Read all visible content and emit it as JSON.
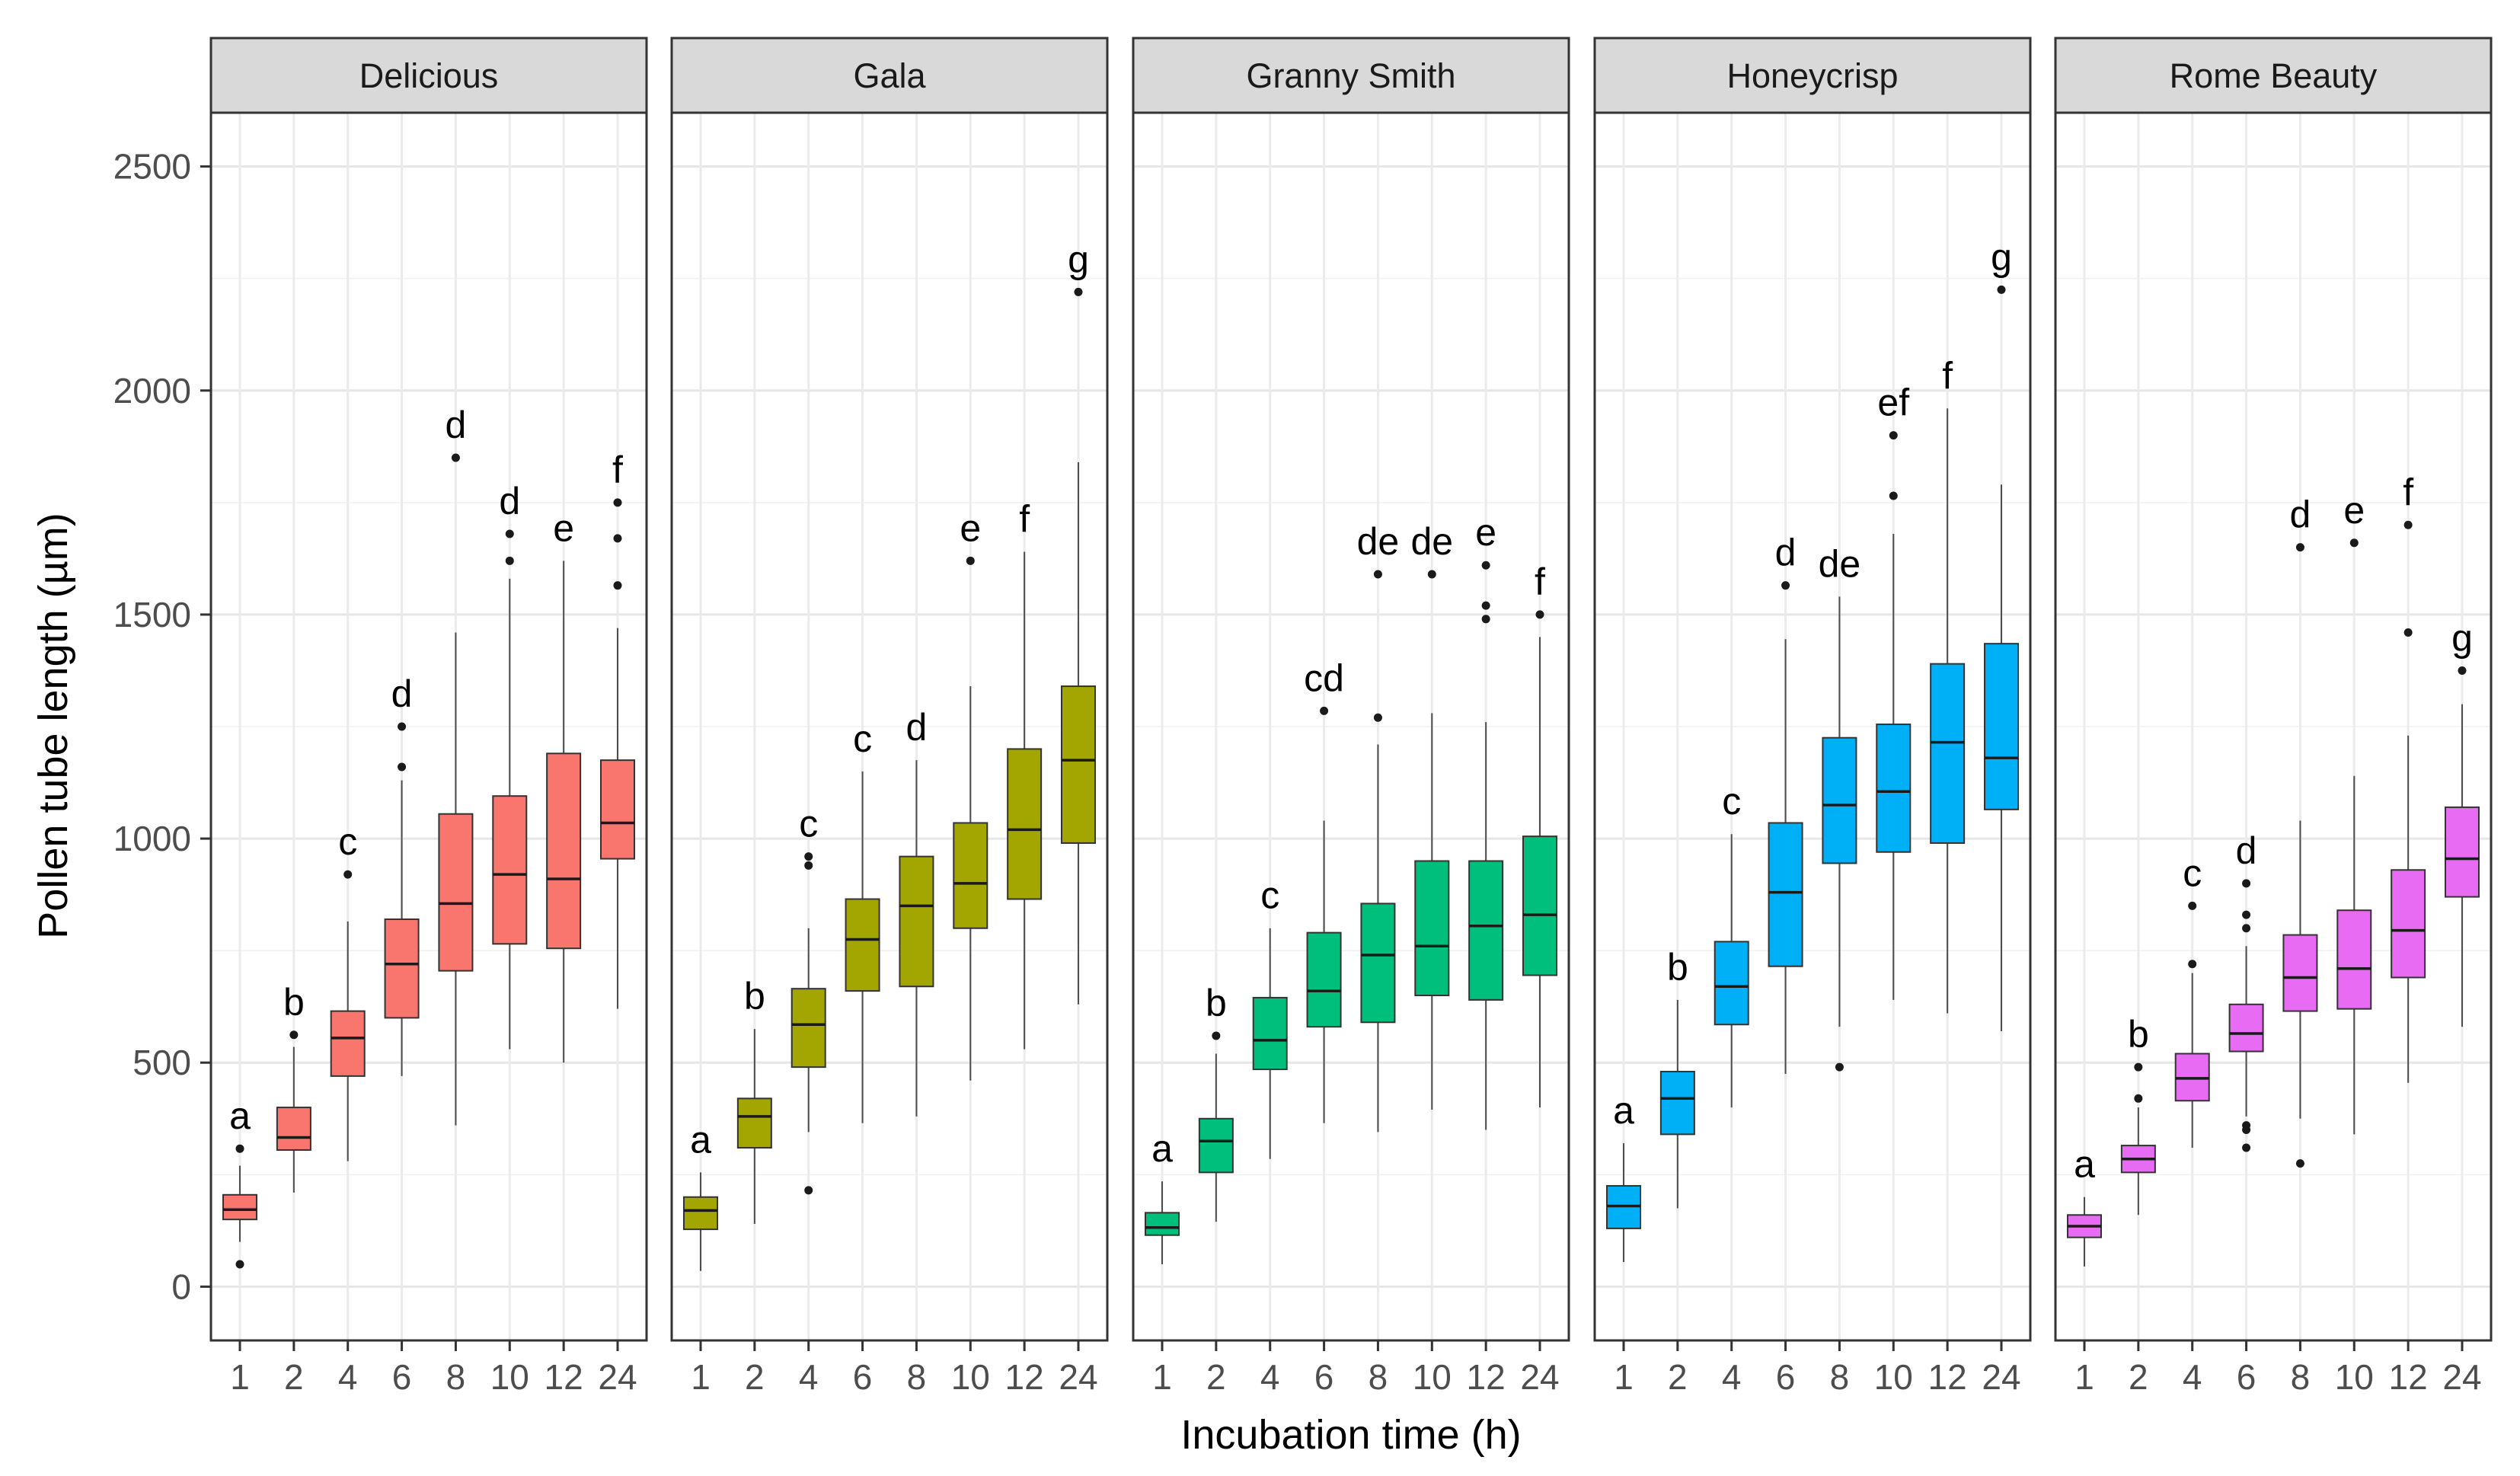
{
  "chart_data": {
    "type": "boxplot",
    "xlabel": "Incubation time (h)",
    "ylabel": "Pollen tube length (µm)",
    "ylim": [
      -120,
      2620
    ],
    "yticks": [
      0,
      500,
      1000,
      1500,
      2000,
      2500
    ],
    "categories": [
      "1",
      "2",
      "4",
      "6",
      "8",
      "10",
      "12",
      "24"
    ],
    "panels": [
      {
        "name": "Delicious",
        "color": "#F8766D",
        "boxes": [
          {
            "x": "1",
            "q1": 150,
            "median": 172,
            "q3": 205,
            "lower": 100,
            "upper": 270,
            "outliers": [
              308,
              50
            ],
            "letter": "a"
          },
          {
            "x": "2",
            "q1": 305,
            "median": 333,
            "q3": 400,
            "lower": 210,
            "upper": 535,
            "outliers": [
              562
            ],
            "letter": "b"
          },
          {
            "x": "4",
            "q1": 470,
            "median": 555,
            "q3": 615,
            "lower": 280,
            "upper": 815,
            "outliers": [
              920
            ],
            "letter": "c"
          },
          {
            "x": "6",
            "q1": 600,
            "median": 720,
            "q3": 820,
            "lower": 470,
            "upper": 1130,
            "outliers": [
              1160,
              1250
            ],
            "letter": "d"
          },
          {
            "x": "8",
            "q1": 705,
            "median": 855,
            "q3": 1055,
            "lower": 360,
            "upper": 1460,
            "outliers": [
              1850
            ],
            "letter": "d"
          },
          {
            "x": "10",
            "q1": 765,
            "median": 920,
            "q3": 1095,
            "lower": 530,
            "upper": 1580,
            "outliers": [
              1620,
              1680
            ],
            "letter": "d"
          },
          {
            "x": "12",
            "q1": 755,
            "median": 910,
            "q3": 1190,
            "lower": 500,
            "upper": 1620,
            "outliers": [],
            "letter": "e"
          },
          {
            "x": "24",
            "q1": 955,
            "median": 1035,
            "q3": 1175,
            "lower": 620,
            "upper": 1470,
            "outliers": [
              1565,
              1670,
              1750
            ],
            "letter": "f"
          }
        ]
      },
      {
        "name": "Gala",
        "color": "#A3A500",
        "boxes": [
          {
            "x": "1",
            "q1": 128,
            "median": 170,
            "q3": 200,
            "lower": 35,
            "upper": 255,
            "outliers": [],
            "letter": "a"
          },
          {
            "x": "2",
            "q1": 310,
            "median": 380,
            "q3": 420,
            "lower": 140,
            "upper": 575,
            "outliers": [],
            "letter": "b"
          },
          {
            "x": "4",
            "q1": 490,
            "median": 585,
            "q3": 665,
            "lower": 345,
            "upper": 800,
            "outliers": [
              940,
              960,
              215
            ],
            "letter": "c"
          },
          {
            "x": "6",
            "q1": 660,
            "median": 775,
            "q3": 865,
            "lower": 365,
            "upper": 1150,
            "outliers": [],
            "letter": "c"
          },
          {
            "x": "8",
            "q1": 670,
            "median": 850,
            "q3": 960,
            "lower": 380,
            "upper": 1175,
            "outliers": [],
            "letter": "d"
          },
          {
            "x": "10",
            "q1": 800,
            "median": 900,
            "q3": 1035,
            "lower": 460,
            "upper": 1340,
            "outliers": [
              1620
            ],
            "letter": "e"
          },
          {
            "x": "12",
            "q1": 865,
            "median": 1020,
            "q3": 1200,
            "lower": 530,
            "upper": 1640,
            "outliers": [],
            "letter": "f"
          },
          {
            "x": "24",
            "q1": 990,
            "median": 1175,
            "q3": 1340,
            "lower": 630,
            "upper": 1840,
            "outliers": [
              2220
            ],
            "letter": "g"
          }
        ]
      },
      {
        "name": "Granny Smith",
        "color": "#00BF7D",
        "boxes": [
          {
            "x": "1",
            "q1": 115,
            "median": 132,
            "q3": 165,
            "lower": 50,
            "upper": 235,
            "outliers": [],
            "letter": "a"
          },
          {
            "x": "2",
            "q1": 255,
            "median": 325,
            "q3": 375,
            "lower": 145,
            "upper": 520,
            "outliers": [
              560
            ],
            "letter": "b"
          },
          {
            "x": "4",
            "q1": 485,
            "median": 550,
            "q3": 645,
            "lower": 285,
            "upper": 800,
            "outliers": [],
            "letter": "c"
          },
          {
            "x": "6",
            "q1": 580,
            "median": 660,
            "q3": 790,
            "lower": 365,
            "upper": 1040,
            "outliers": [
              1285
            ],
            "letter": "cd"
          },
          {
            "x": "8",
            "q1": 590,
            "median": 740,
            "q3": 855,
            "lower": 345,
            "upper": 1210,
            "outliers": [
              1270,
              1590
            ],
            "letter": "de"
          },
          {
            "x": "10",
            "q1": 650,
            "median": 760,
            "q3": 950,
            "lower": 395,
            "upper": 1280,
            "outliers": [
              1590
            ],
            "letter": "de"
          },
          {
            "x": "12",
            "q1": 640,
            "median": 805,
            "q3": 950,
            "lower": 350,
            "upper": 1260,
            "outliers": [
              1490,
              1520,
              1610
            ],
            "letter": "e"
          },
          {
            "x": "24",
            "q1": 695,
            "median": 830,
            "q3": 1005,
            "lower": 400,
            "upper": 1450,
            "outliers": [
              1500
            ],
            "letter": "f"
          }
        ]
      },
      {
        "name": "Honeycrisp",
        "color": "#00B0F6",
        "boxes": [
          {
            "x": "1",
            "q1": 130,
            "median": 180,
            "q3": 225,
            "lower": 55,
            "upper": 320,
            "outliers": [],
            "letter": "a"
          },
          {
            "x": "2",
            "q1": 340,
            "median": 420,
            "q3": 480,
            "lower": 175,
            "upper": 640,
            "outliers": [],
            "letter": "b"
          },
          {
            "x": "4",
            "q1": 585,
            "median": 670,
            "q3": 770,
            "lower": 400,
            "upper": 1010,
            "outliers": [],
            "letter": "c"
          },
          {
            "x": "6",
            "q1": 715,
            "median": 880,
            "q3": 1035,
            "lower": 475,
            "upper": 1445,
            "outliers": [
              1565
            ],
            "letter": "d"
          },
          {
            "x": "8",
            "q1": 945,
            "median": 1075,
            "q3": 1225,
            "lower": 580,
            "upper": 1540,
            "outliers": [
              490
            ],
            "letter": "de"
          },
          {
            "x": "10",
            "q1": 970,
            "median": 1105,
            "q3": 1255,
            "lower": 640,
            "upper": 1680,
            "outliers": [
              1765,
              1900
            ],
            "letter": "ef"
          },
          {
            "x": "12",
            "q1": 990,
            "median": 1215,
            "q3": 1390,
            "lower": 610,
            "upper": 1960,
            "outliers": [],
            "letter": "f"
          },
          {
            "x": "24",
            "q1": 1065,
            "median": 1180,
            "q3": 1435,
            "lower": 570,
            "upper": 1790,
            "outliers": [
              2225
            ],
            "letter": "g"
          }
        ]
      },
      {
        "name": "Rome Beauty",
        "color": "#E76BF3",
        "boxes": [
          {
            "x": "1",
            "q1": 110,
            "median": 135,
            "q3": 160,
            "lower": 45,
            "upper": 200,
            "outliers": [],
            "letter": "a"
          },
          {
            "x": "2",
            "q1": 255,
            "median": 285,
            "q3": 315,
            "lower": 160,
            "upper": 400,
            "outliers": [
              420,
              490
            ],
            "letter": "b"
          },
          {
            "x": "4",
            "q1": 415,
            "median": 465,
            "q3": 520,
            "lower": 310,
            "upper": 700,
            "outliers": [
              720,
              850
            ],
            "letter": "c"
          },
          {
            "x": "6",
            "q1": 525,
            "median": 565,
            "q3": 630,
            "lower": 380,
            "upper": 760,
            "outliers": [
              360,
              350,
              310,
              800,
              830,
              900
            ],
            "letter": "d"
          },
          {
            "x": "8",
            "q1": 615,
            "median": 690,
            "q3": 785,
            "lower": 375,
            "upper": 1040,
            "outliers": [
              275,
              1650
            ],
            "letter": "d"
          },
          {
            "x": "10",
            "q1": 620,
            "median": 710,
            "q3": 840,
            "lower": 340,
            "upper": 1140,
            "outliers": [
              1660
            ],
            "letter": "e"
          },
          {
            "x": "12",
            "q1": 690,
            "median": 795,
            "q3": 930,
            "lower": 455,
            "upper": 1230,
            "outliers": [
              1460,
              1700
            ],
            "letter": "f"
          },
          {
            "x": "24",
            "q1": 870,
            "median": 955,
            "q3": 1070,
            "lower": 580,
            "upper": 1300,
            "outliers": [
              1375
            ],
            "letter": "g"
          }
        ]
      }
    ]
  }
}
